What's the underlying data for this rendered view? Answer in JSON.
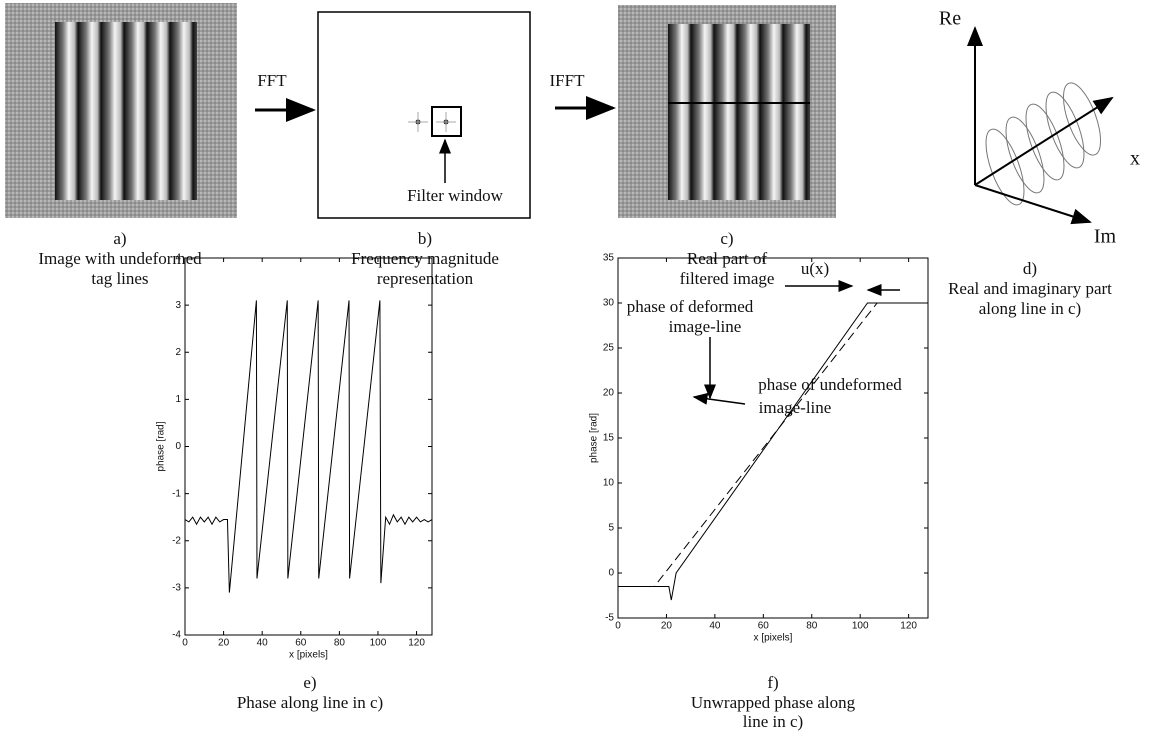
{
  "panels": {
    "a": {
      "label": "a)",
      "caption": [
        "Image with undeformed",
        "tag lines"
      ]
    },
    "b": {
      "label": "b)",
      "caption": [
        "Frequency magnitude",
        "representation"
      ],
      "filter_window": "Filter window"
    },
    "c": {
      "label": "c)",
      "caption": [
        "Real part of",
        "filtered image"
      ]
    },
    "d": {
      "label": "d)",
      "caption": [
        "Real and imaginary part",
        "along line in c)"
      ],
      "axis_re": "Re",
      "axis_x": "x",
      "axis_im": "Im"
    }
  },
  "arrows": {
    "fft": "FFT",
    "ifft": "IFFT"
  },
  "chart_data": [
    {
      "type": "line",
      "label": "e)",
      "caption": [
        "Phase along line in c)"
      ],
      "xlabel": "x [pixels]",
      "ylabel": "phase [rad]",
      "xlim": [
        0,
        128
      ],
      "ylim": [
        -4,
        4
      ],
      "xticks": [
        0,
        20,
        40,
        60,
        80,
        100,
        120
      ],
      "yticks": [
        -4,
        -3,
        -2,
        -1,
        0,
        1,
        2,
        3,
        4
      ],
      "series": [
        {
          "color": "#000000",
          "linestyle": "solid",
          "x": [
            0,
            2,
            4,
            6,
            8,
            10,
            12,
            14,
            16,
            18,
            20,
            22,
            23,
            37,
            37.3,
            53,
            53.3,
            69,
            69.3,
            85,
            85.3,
            101,
            101.5,
            104,
            106,
            108,
            110,
            112,
            114,
            116,
            118,
            120,
            122,
            124,
            126,
            128
          ],
          "values": [
            -1.55,
            -1.6,
            -1.5,
            -1.65,
            -1.5,
            -1.6,
            -1.5,
            -1.65,
            -1.5,
            -1.6,
            -1.55,
            -1.55,
            -3.1,
            3.1,
            -2.8,
            3.1,
            -2.8,
            3.1,
            -2.8,
            3.1,
            -2.8,
            3.1,
            -2.9,
            -1.5,
            -1.65,
            -1.45,
            -1.6,
            -1.5,
            -1.65,
            -1.5,
            -1.6,
            -1.5,
            -1.6,
            -1.55,
            -1.6,
            -1.55
          ]
        }
      ]
    },
    {
      "type": "line",
      "label": "f)",
      "caption": [
        "Unwrapped phase along",
        "line in c)"
      ],
      "xlabel": "x [pixels]",
      "ylabel": "phase [rad]",
      "xlim": [
        0,
        128
      ],
      "ylim": [
        -5,
        35
      ],
      "xticks": [
        0,
        20,
        40,
        60,
        80,
        100,
        120
      ],
      "yticks": [
        -5,
        0,
        5,
        10,
        15,
        20,
        25,
        30,
        35
      ],
      "annotations": {
        "u": "u(x)",
        "deformed": [
          "phase of deformed",
          "image-line"
        ],
        "undeformed": [
          "phase of undeformed",
          "image-line"
        ]
      },
      "series": [
        {
          "color": "#000000",
          "linestyle": "solid",
          "x": [
            0,
            21,
            22,
            24,
            103,
            128
          ],
          "values": [
            -1.5,
            -1.5,
            -3,
            0,
            30,
            30
          ]
        },
        {
          "color": "#000000",
          "linestyle": "dashed",
          "x": [
            0,
            15,
            107,
            128
          ],
          "values": [
            -1.5,
            -1.5,
            30,
            30
          ]
        }
      ]
    }
  ]
}
